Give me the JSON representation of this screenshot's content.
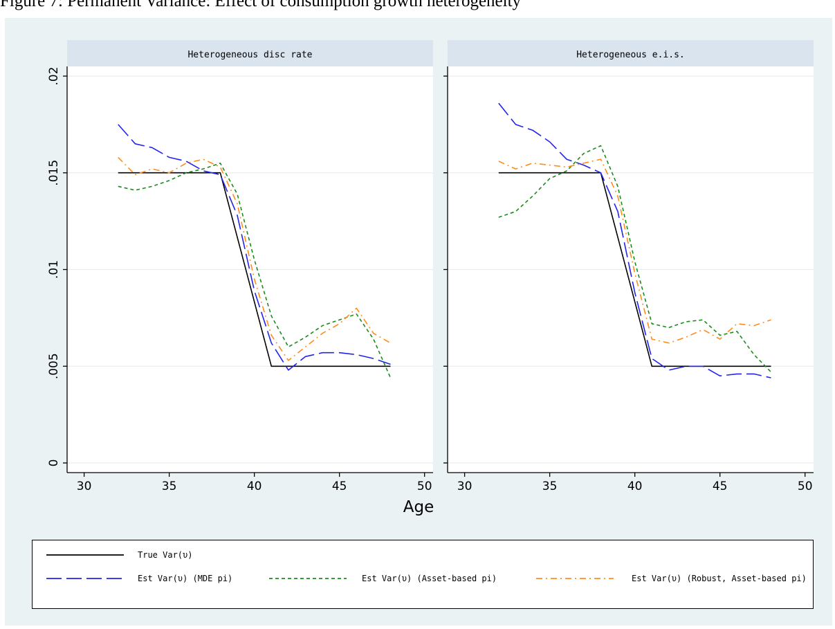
{
  "caption": "Figure 7: Permanent Variance: Effect of consumption growth heterogeneity",
  "colors": {
    "background": "#eaf2f3",
    "plot_background": "#ffffff",
    "strip_background": "#dae4ef",
    "true": "#000000",
    "mde": "#2222ee",
    "asset": "#1a8a1a",
    "robust": "#ff8c1a"
  },
  "chart_data": [
    {
      "type": "line",
      "title": "Heterogeneous disc rate",
      "xlabel": "Age",
      "ylabel": "",
      "xlim": [
        29,
        50.5
      ],
      "ylim": [
        -0.0005,
        0.0205
      ],
      "xticks": [
        30,
        35,
        40,
        45,
        50
      ],
      "yticks": [
        0,
        0.005,
        0.01,
        0.015,
        0.02
      ],
      "ytick_labels": [
        "0",
        ".005",
        ".01",
        ".015",
        ".02"
      ],
      "grid": "horizontal",
      "series": [
        {
          "name": "True Var(υ)",
          "key": "true",
          "x": [
            32,
            38,
            41,
            48
          ],
          "y": [
            0.015,
            0.015,
            0.005,
            0.005
          ]
        },
        {
          "name": "Est Var(υ) (MDE pi)",
          "key": "mde",
          "x": [
            32,
            33,
            34,
            35,
            36,
            37,
            38,
            39,
            40,
            41,
            42,
            43,
            44,
            45,
            46,
            47,
            48
          ],
          "y": [
            0.0175,
            0.0165,
            0.0163,
            0.0158,
            0.0156,
            0.0151,
            0.0149,
            0.0128,
            0.0089,
            0.0062,
            0.0048,
            0.0055,
            0.0057,
            0.0057,
            0.0056,
            0.0054,
            0.0051
          ]
        },
        {
          "name": "Est Var(υ) (Asset-based pi)",
          "key": "asset",
          "x": [
            32,
            33,
            34,
            35,
            36,
            37,
            38,
            39,
            40,
            41,
            42,
            43,
            44,
            45,
            46,
            47,
            48
          ],
          "y": [
            0.0143,
            0.0141,
            0.0143,
            0.0146,
            0.015,
            0.0152,
            0.0155,
            0.0139,
            0.0105,
            0.0076,
            0.006,
            0.0065,
            0.0071,
            0.0074,
            0.0077,
            0.0064,
            0.0044
          ]
        },
        {
          "name": "Est Var(υ) (Robust, Asset-based pi)",
          "key": "robust",
          "x": [
            32,
            33,
            34,
            35,
            36,
            37,
            38,
            39,
            40,
            41,
            42,
            43,
            44,
            45,
            46,
            47,
            48
          ],
          "y": [
            0.0158,
            0.0149,
            0.0152,
            0.015,
            0.0155,
            0.0157,
            0.0153,
            0.0134,
            0.0095,
            0.0066,
            0.0053,
            0.006,
            0.0067,
            0.0072,
            0.008,
            0.0067,
            0.0062
          ]
        }
      ]
    },
    {
      "type": "line",
      "title": "Heterogeneous e.i.s.",
      "xlabel": "Age",
      "ylabel": "",
      "xlim": [
        29,
        50.5
      ],
      "ylim": [
        -0.0005,
        0.0205
      ],
      "xticks": [
        30,
        35,
        40,
        45,
        50
      ],
      "yticks": [
        0,
        0.005,
        0.01,
        0.015,
        0.02
      ],
      "grid": "horizontal",
      "series": [
        {
          "name": "True Var(υ)",
          "key": "true",
          "x": [
            32,
            38,
            41,
            48
          ],
          "y": [
            0.015,
            0.015,
            0.005,
            0.005
          ]
        },
        {
          "name": "Est Var(υ) (MDE pi)",
          "key": "mde",
          "x": [
            32,
            33,
            34,
            35,
            36,
            37,
            38,
            39,
            40,
            41,
            42,
            43,
            44,
            45,
            46,
            47,
            48
          ],
          "y": [
            0.0186,
            0.0175,
            0.0172,
            0.0166,
            0.0157,
            0.0154,
            0.015,
            0.013,
            0.0088,
            0.0054,
            0.0048,
            0.005,
            0.005,
            0.0045,
            0.0046,
            0.0046,
            0.0044
          ]
        },
        {
          "name": "Est Var(υ) (Asset-based pi)",
          "key": "asset",
          "x": [
            32,
            33,
            34,
            35,
            36,
            37,
            38,
            39,
            40,
            41,
            42,
            43,
            44,
            45,
            46,
            47,
            48
          ],
          "y": [
            0.0127,
            0.013,
            0.0138,
            0.0147,
            0.0151,
            0.016,
            0.0164,
            0.0143,
            0.0104,
            0.0072,
            0.007,
            0.0073,
            0.0074,
            0.0066,
            0.0068,
            0.0056,
            0.0047
          ]
        },
        {
          "name": "Est Var(υ) (Robust, Asset-based pi)",
          "key": "robust",
          "x": [
            32,
            33,
            34,
            35,
            36,
            37,
            38,
            39,
            40,
            41,
            42,
            43,
            44,
            45,
            46,
            47,
            48
          ],
          "y": [
            0.0156,
            0.0152,
            0.0155,
            0.0154,
            0.0153,
            0.0155,
            0.0157,
            0.0138,
            0.0098,
            0.0064,
            0.0062,
            0.0065,
            0.0069,
            0.0064,
            0.0072,
            0.0071,
            0.0074
          ]
        }
      ]
    }
  ],
  "legend": {
    "entries": [
      {
        "key": "true",
        "label": "True Var(υ)"
      },
      {
        "key": "mde",
        "label": "Est Var(υ) (MDE pi)"
      },
      {
        "key": "asset",
        "label": "Est Var(υ) (Asset-based pi)"
      },
      {
        "key": "robust",
        "label": "Est Var(υ) (Robust, Asset-based pi)"
      }
    ]
  }
}
